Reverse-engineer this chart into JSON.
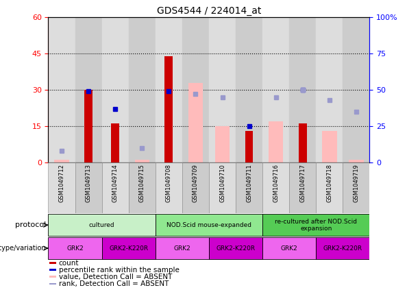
{
  "title": "GDS4544 / 224014_at",
  "samples": [
    "GSM1049712",
    "GSM1049713",
    "GSM1049714",
    "GSM1049715",
    "GSM1049708",
    "GSM1049709",
    "GSM1049710",
    "GSM1049711",
    "GSM1049716",
    "GSM1049717",
    "GSM1049718",
    "GSM1049719"
  ],
  "count_values": [
    0,
    30,
    16,
    0,
    44,
    0,
    0,
    13,
    0,
    16,
    0,
    0
  ],
  "value_absent": [
    1,
    0,
    0,
    1,
    0,
    33,
    15,
    0,
    17,
    0,
    13,
    1
  ],
  "rank_pct_present": [
    0,
    49,
    37,
    0,
    49,
    0,
    0,
    25,
    0,
    50,
    0,
    0
  ],
  "rank_pct_absent": [
    8,
    0,
    0,
    10,
    0,
    47,
    45,
    0,
    45,
    50,
    43,
    35
  ],
  "ylim_left": [
    0,
    60
  ],
  "ylim_right": [
    0,
    100
  ],
  "yticks_left": [
    0,
    15,
    30,
    45,
    60
  ],
  "yticks_right": [
    0,
    25,
    50,
    75,
    100
  ],
  "yticklabels_right": [
    "0",
    "25",
    "50",
    "75",
    "100%"
  ],
  "protocol_groups": [
    {
      "label": "cultured",
      "start": 0,
      "end": 3,
      "color": "#c8f0c8"
    },
    {
      "label": "NOD.Scid mouse-expanded",
      "start": 4,
      "end": 7,
      "color": "#90e890"
    },
    {
      "label": "re-cultured after NOD.Scid\nexpansion",
      "start": 8,
      "end": 11,
      "color": "#55cc55"
    }
  ],
  "genotype_groups": [
    {
      "label": "GRK2",
      "start": 0,
      "end": 1,
      "color": "#ee66ee"
    },
    {
      "label": "GRK2-K220R",
      "start": 2,
      "end": 3,
      "color": "#cc00cc"
    },
    {
      "label": "GRK2",
      "start": 4,
      "end": 5,
      "color": "#ee66ee"
    },
    {
      "label": "GRK2-K220R",
      "start": 6,
      "end": 7,
      "color": "#cc00cc"
    },
    {
      "label": "GRK2",
      "start": 8,
      "end": 9,
      "color": "#ee66ee"
    },
    {
      "label": "GRK2-K220R",
      "start": 10,
      "end": 11,
      "color": "#cc00cc"
    }
  ],
  "bar_color_present": "#cc0000",
  "bar_color_absent": "#ffbbbb",
  "dot_color_present": "#0000cc",
  "dot_color_absent": "#9999cc",
  "bg_colors": [
    "#dddddd",
    "#cccccc"
  ],
  "legend_items": [
    {
      "color": "#cc0000",
      "label": "count"
    },
    {
      "color": "#0000cc",
      "label": "percentile rank within the sample"
    },
    {
      "color": "#ffbbbb",
      "label": "value, Detection Call = ABSENT"
    },
    {
      "color": "#9999cc",
      "label": "rank, Detection Call = ABSENT"
    }
  ]
}
